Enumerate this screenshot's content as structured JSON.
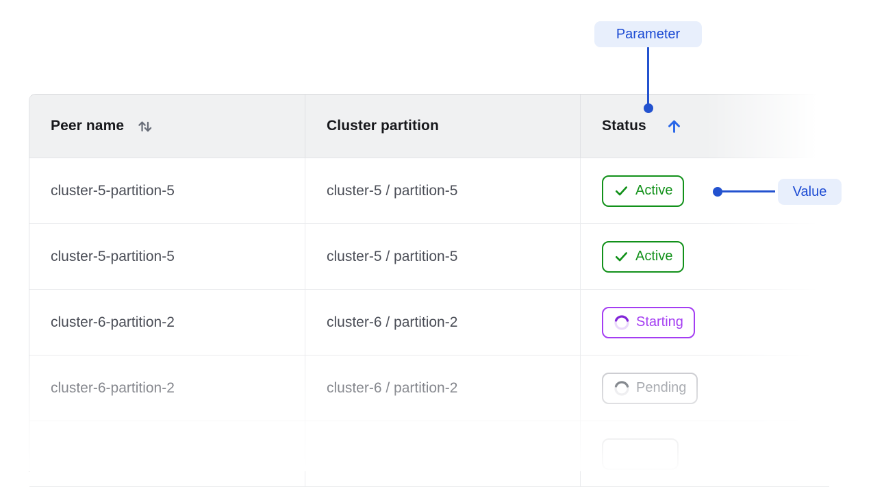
{
  "annotations": {
    "parameter_label": "Parameter",
    "value_label": "Value",
    "pill_bg": "#e8effc",
    "pill_text_color": "#1b4ad3",
    "connector_color": "#2352cf"
  },
  "table": {
    "columns": [
      {
        "label": "Peer name",
        "sortable": true,
        "sort_state": "none",
        "sort_icon": "sort-both-icon",
        "sort_icon_color": "#686d78"
      },
      {
        "label": "Cluster partition",
        "sortable": false
      },
      {
        "label": "Status",
        "sortable": true,
        "sort_state": "asc",
        "sort_icon": "arrow-up-icon",
        "sort_icon_color": "#2966e8"
      }
    ],
    "rows": [
      {
        "name": "cluster-5-partition-5",
        "partition": "cluster-5 / partition-5",
        "status": {
          "label": "Active",
          "type": "active"
        }
      },
      {
        "name": "cluster-5-partition-5",
        "partition": "cluster-5 / partition-5",
        "status": {
          "label": "Active",
          "type": "active"
        }
      },
      {
        "name": "cluster-6-partition-2",
        "partition": "cluster-6 / partition-2",
        "status": {
          "label": "Starting",
          "type": "starting"
        }
      },
      {
        "name": "cluster-6-partition-2",
        "partition": "cluster-6 / partition-2",
        "status": {
          "label": "Pending",
          "type": "pending"
        }
      },
      {
        "name": "",
        "partition": "",
        "status": {
          "label": "",
          "type": "ghost"
        }
      }
    ],
    "status_styles": {
      "active": {
        "text": "#12911a",
        "border": "#12911a",
        "icon": "check"
      },
      "starting": {
        "text": "#a43df2",
        "border": "#a43df2",
        "icon": "spinner",
        "spinner_arc": "#8326d8",
        "spinner_track": "#ead9fb"
      },
      "pending": {
        "text": "#81858d",
        "border": "#c2c3c8",
        "icon": "spinner",
        "spinner_arc": "#565c64",
        "spinner_track": "#e5e5e8"
      },
      "ghost": {
        "text": "#c9cacd",
        "border": "#c9cacd",
        "icon": "none"
      }
    },
    "header_bg": "#f0f1f2",
    "header_text_color": "#17181c",
    "cell_text_color": "#4b4e57"
  }
}
